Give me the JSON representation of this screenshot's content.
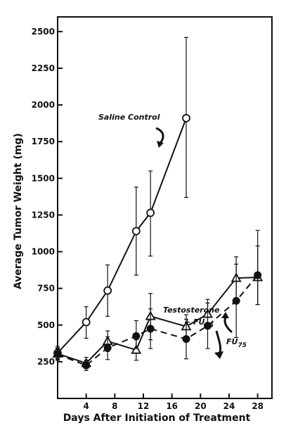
{
  "chart_data": {
    "type": "line",
    "xlabel": "Days After Initiation of Treatment",
    "ylabel": "Average Tumor Weight (mg)",
    "xlim": [
      0,
      30
    ],
    "ylim": [
      0,
      2600
    ],
    "x_ticks": [
      4,
      8,
      12,
      16,
      20,
      24,
      28
    ],
    "y_ticks": [
      250,
      500,
      750,
      1000,
      1250,
      1500,
      1750,
      2000,
      2250,
      2500
    ],
    "grid": false,
    "series": [
      {
        "name": "Saline Control",
        "marker": "open-circle",
        "line": "solid",
        "points": [
          {
            "x": 0,
            "y": 310,
            "lo": 270,
            "hi": 355
          },
          {
            "x": 4,
            "y": 520,
            "lo": 410,
            "hi": 625
          },
          {
            "x": 7,
            "y": 735,
            "lo": 560,
            "hi": 910
          },
          {
            "x": 11,
            "y": 1140,
            "lo": 840,
            "hi": 1440
          },
          {
            "x": 13,
            "y": 1265,
            "lo": 970,
            "hi": 1550
          },
          {
            "x": 18,
            "y": 1910,
            "lo": 1370,
            "hi": 2460
          }
        ]
      },
      {
        "name": "Testosterone + FU75",
        "marker": "open-triangle",
        "line": "solid",
        "points": [
          {
            "x": 0,
            "y": 305,
            "lo": 265,
            "hi": 345
          },
          {
            "x": 4,
            "y": 240,
            "lo": 205,
            "hi": 280
          },
          {
            "x": 7,
            "y": 390,
            "lo": 320,
            "hi": 460
          },
          {
            "x": 11,
            "y": 330,
            "lo": 260,
            "hi": 400
          },
          {
            "x": 13,
            "y": 560,
            "lo": 400,
            "hi": 715
          },
          {
            "x": 18,
            "y": 490,
            "lo": 410,
            "hi": 570
          },
          {
            "x": 21,
            "y": 575,
            "lo": 475,
            "hi": 675
          },
          {
            "x": 25,
            "y": 820,
            "lo": 680,
            "hi": 965
          },
          {
            "x": 28,
            "y": 825,
            "lo": 640,
            "hi": 1145
          }
        ]
      },
      {
        "name": "FU75",
        "marker": "filled-circle",
        "line": "dashed",
        "points": [
          {
            "x": 0,
            "y": 300,
            "lo": 260,
            "hi": 340
          },
          {
            "x": 4,
            "y": 225,
            "lo": 190,
            "hi": 260
          },
          {
            "x": 7,
            "y": 345,
            "lo": 265,
            "hi": 420
          },
          {
            "x": 11,
            "y": 425,
            "lo": 340,
            "hi": 530
          },
          {
            "x": 13,
            "y": 475,
            "lo": 340,
            "hi": 610
          },
          {
            "x": 18,
            "y": 405,
            "lo": 270,
            "hi": 540
          },
          {
            "x": 21,
            "y": 495,
            "lo": 340,
            "hi": 650
          },
          {
            "x": 25,
            "y": 665,
            "lo": 415,
            "hi": 915
          },
          {
            "x": 28,
            "y": 840,
            "lo": 640,
            "hi": 1040
          }
        ]
      }
    ],
    "annotations": {
      "saline": "Saline Control",
      "testo_line1": "Testosterone",
      "testo_line2": "+ FU",
      "fu": "FU",
      "subscript": "75"
    }
  }
}
